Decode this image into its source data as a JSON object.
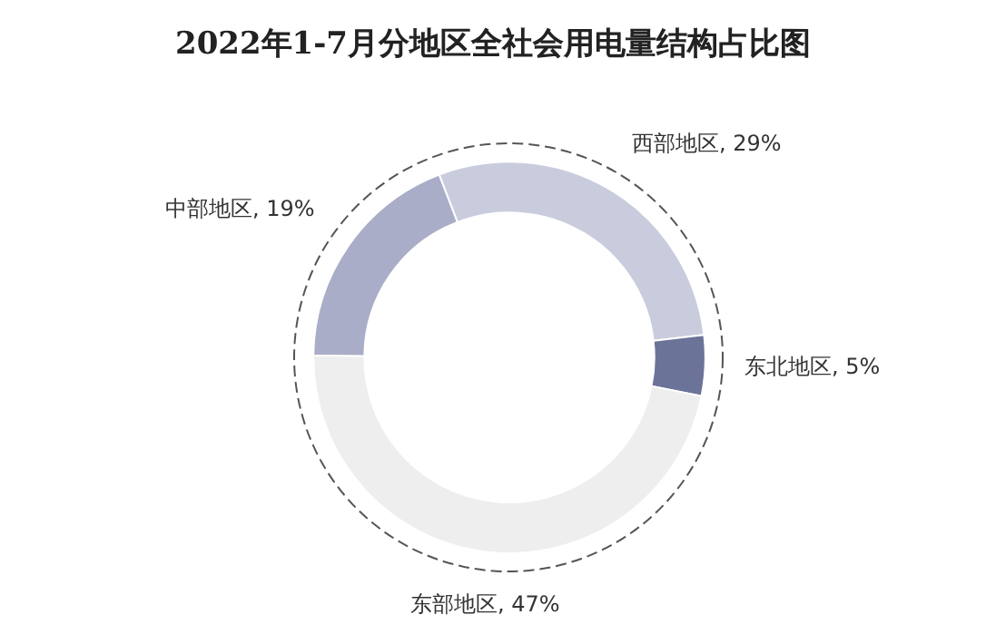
{
  "chart_data": {
    "type": "donut",
    "title": "2022年1-7月分地区全社会用电量结构占比图",
    "categories": [
      "西部地区",
      "东北地区",
      "东部地区",
      "中部地区"
    ],
    "values": [
      29,
      5,
      47,
      19
    ],
    "value_labels": [
      "29%",
      "5%",
      "47%",
      "19%"
    ],
    "colors": [
      "#c9ccdd",
      "#6b7398",
      "#eeeeee",
      "#a9adc7"
    ],
    "legend": false
  }
}
